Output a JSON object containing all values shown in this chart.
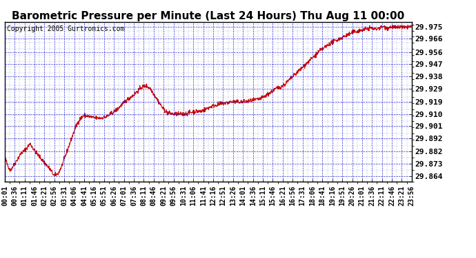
{
  "title": "Barometric Pressure per Minute (Last 24 Hours) Thu Aug 11 00:00",
  "copyright": "Copyright 2005 Gurtronics.com",
  "bg_color": "#ffffff",
  "plot_bg_color": "#ffffff",
  "line_color": "#cc0000",
  "grid_color": "#0000cc",
  "text_color": "#000000",
  "ylabel_values": [
    29.864,
    29.873,
    29.882,
    29.892,
    29.901,
    29.91,
    29.919,
    29.929,
    29.938,
    29.947,
    29.956,
    29.966,
    29.975
  ],
  "ylim": [
    29.8595,
    29.9785
  ],
  "xtick_labels": [
    "00:01",
    "00:36",
    "01:11",
    "01:46",
    "02:21",
    "02:56",
    "03:31",
    "04:06",
    "04:41",
    "05:16",
    "05:51",
    "06:26",
    "07:01",
    "07:36",
    "08:11",
    "08:46",
    "09:21",
    "09:56",
    "10:31",
    "11:06",
    "11:41",
    "12:16",
    "12:51",
    "13:26",
    "14:01",
    "14:36",
    "15:11",
    "15:46",
    "16:21",
    "16:56",
    "17:31",
    "18:06",
    "18:41",
    "19:16",
    "19:51",
    "20:26",
    "21:01",
    "21:36",
    "22:11",
    "22:46",
    "23:21",
    "23:56"
  ],
  "title_fontsize": 11,
  "copyright_fontsize": 7,
  "tick_fontsize": 7,
  "ytick_fontsize": 8,
  "keypoints": [
    [
      0,
      29.878
    ],
    [
      10,
      29.872
    ],
    [
      20,
      29.868
    ],
    [
      35,
      29.873
    ],
    [
      55,
      29.88
    ],
    [
      75,
      29.884
    ],
    [
      90,
      29.888
    ],
    [
      105,
      29.883
    ],
    [
      120,
      29.879
    ],
    [
      140,
      29.874
    ],
    [
      160,
      29.869
    ],
    [
      175,
      29.864
    ],
    [
      190,
      29.866
    ],
    [
      205,
      29.873
    ],
    [
      220,
      29.882
    ],
    [
      235,
      29.891
    ],
    [
      250,
      29.9
    ],
    [
      265,
      29.906
    ],
    [
      280,
      29.909
    ],
    [
      300,
      29.908
    ],
    [
      320,
      29.907
    ],
    [
      340,
      29.907
    ],
    [
      360,
      29.908
    ],
    [
      375,
      29.91
    ],
    [
      395,
      29.913
    ],
    [
      415,
      29.917
    ],
    [
      435,
      29.921
    ],
    [
      455,
      29.924
    ],
    [
      470,
      29.927
    ],
    [
      485,
      29.93
    ],
    [
      500,
      29.931
    ],
    [
      515,
      29.929
    ],
    [
      530,
      29.924
    ],
    [
      545,
      29.919
    ],
    [
      560,
      29.914
    ],
    [
      575,
      29.911
    ],
    [
      595,
      29.91
    ],
    [
      615,
      29.91
    ],
    [
      635,
      29.91
    ],
    [
      655,
      29.911
    ],
    [
      675,
      29.912
    ],
    [
      695,
      29.912
    ],
    [
      715,
      29.914
    ],
    [
      735,
      29.916
    ],
    [
      755,
      29.917
    ],
    [
      775,
      29.918
    ],
    [
      800,
      29.919
    ],
    [
      825,
      29.919
    ],
    [
      850,
      29.919
    ],
    [
      875,
      29.92
    ],
    [
      900,
      29.921
    ],
    [
      920,
      29.923
    ],
    [
      940,
      29.926
    ],
    [
      960,
      29.929
    ],
    [
      975,
      29.93
    ],
    [
      990,
      29.932
    ],
    [
      1005,
      29.935
    ],
    [
      1020,
      29.938
    ],
    [
      1035,
      29.941
    ],
    [
      1055,
      29.945
    ],
    [
      1075,
      29.949
    ],
    [
      1095,
      29.953
    ],
    [
      1115,
      29.957
    ],
    [
      1135,
      29.96
    ],
    [
      1155,
      29.963
    ],
    [
      1175,
      29.965
    ],
    [
      1195,
      29.967
    ],
    [
      1215,
      29.969
    ],
    [
      1235,
      29.971
    ],
    [
      1255,
      29.972
    ],
    [
      1275,
      29.973
    ],
    [
      1295,
      29.974
    ],
    [
      1310,
      29.973
    ],
    [
      1325,
      29.974
    ],
    [
      1340,
      29.975
    ],
    [
      1355,
      29.974
    ],
    [
      1370,
      29.975
    ],
    [
      1385,
      29.974
    ],
    [
      1400,
      29.975
    ],
    [
      1415,
      29.974
    ],
    [
      1430,
      29.975
    ],
    [
      1440,
      29.975
    ]
  ]
}
